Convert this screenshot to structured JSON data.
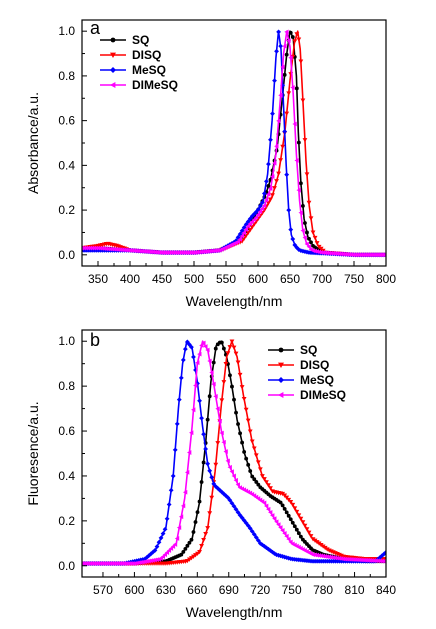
{
  "chart_data": [
    {
      "type": "line",
      "panel_label": "a",
      "xlabel": "Wavelength/nm",
      "ylabel": "Absorbance/a.u.",
      "xlim": [
        325,
        800
      ],
      "ylim": [
        -0.05,
        1.05
      ],
      "xticks": [
        350,
        400,
        450,
        500,
        550,
        600,
        650,
        700,
        750,
        800
      ],
      "xtick_labels": [
        "350",
        "400",
        "450",
        "500",
        "550",
        "600",
        "650",
        "700",
        "750",
        "800"
      ],
      "yticks": [
        0.0,
        0.2,
        0.4,
        0.6,
        0.8,
        1.0
      ],
      "ytick_labels": [
        "0.0",
        "0.2",
        "0.4",
        "0.6",
        "0.8",
        "1.0"
      ],
      "legend_position": "top-left",
      "series": [
        {
          "name": "SQ",
          "color": "#000000",
          "marker": "circle",
          "x": [
            325,
            350,
            375,
            400,
            450,
            500,
            540,
            570,
            585,
            600,
            612,
            620,
            630,
            638,
            645,
            650,
            655,
            660,
            663,
            667,
            672,
            678,
            686,
            700,
            750,
            800
          ],
          "y": [
            0.03,
            0.03,
            0.025,
            0.02,
            0.01,
            0.01,
            0.02,
            0.06,
            0.12,
            0.2,
            0.27,
            0.34,
            0.48,
            0.7,
            0.9,
            1.0,
            0.97,
            0.8,
            0.55,
            0.32,
            0.16,
            0.08,
            0.04,
            0.01,
            0.0,
            0.0
          ]
        },
        {
          "name": "DISQ",
          "color": "#ff0000",
          "marker": "triangle-down",
          "x": [
            325,
            350,
            365,
            380,
            400,
            450,
            500,
            540,
            575,
            595,
            610,
            622,
            632,
            642,
            650,
            657,
            662,
            666,
            670,
            675,
            680,
            686,
            694,
            705,
            750,
            800
          ],
          "y": [
            0.03,
            0.04,
            0.05,
            0.04,
            0.02,
            0.01,
            0.01,
            0.02,
            0.06,
            0.14,
            0.2,
            0.26,
            0.36,
            0.55,
            0.78,
            0.95,
            1.0,
            0.92,
            0.7,
            0.42,
            0.22,
            0.1,
            0.04,
            0.01,
            0.0,
            0.0
          ]
        },
        {
          "name": "MeSQ",
          "color": "#0000ff",
          "marker": "diamond",
          "x": [
            325,
            350,
            375,
            400,
            450,
            500,
            540,
            565,
            580,
            590,
            600,
            608,
            615,
            622,
            628,
            632,
            636,
            640,
            644,
            648,
            652,
            658,
            665,
            680,
            750,
            800
          ],
          "y": [
            0.02,
            0.02,
            0.02,
            0.02,
            0.01,
            0.01,
            0.02,
            0.06,
            0.13,
            0.17,
            0.2,
            0.24,
            0.36,
            0.6,
            0.88,
            1.0,
            0.92,
            0.66,
            0.4,
            0.2,
            0.09,
            0.04,
            0.02,
            0.01,
            0.0,
            0.0
          ]
        },
        {
          "name": "DIMeSQ",
          "color": "#ff00ff",
          "marker": "triangle-left",
          "x": [
            325,
            350,
            375,
            400,
            450,
            500,
            540,
            570,
            585,
            598,
            610,
            620,
            628,
            635,
            640,
            645,
            650,
            655,
            660,
            665,
            670,
            676,
            684,
            700,
            750,
            800
          ],
          "y": [
            0.03,
            0.03,
            0.025,
            0.02,
            0.01,
            0.01,
            0.02,
            0.06,
            0.13,
            0.17,
            0.22,
            0.3,
            0.45,
            0.7,
            0.9,
            1.0,
            0.93,
            0.72,
            0.45,
            0.24,
            0.11,
            0.05,
            0.02,
            0.01,
            0.0,
            0.0
          ]
        }
      ]
    },
    {
      "type": "line",
      "panel_label": "b",
      "xlabel": "Wavelength/nm",
      "ylabel": "Fluoresence/a.u.",
      "xlim": [
        550,
        840
      ],
      "ylim": [
        -0.05,
        1.05
      ],
      "xticks": [
        570,
        600,
        630,
        660,
        690,
        720,
        750,
        780,
        810,
        840
      ],
      "xtick_labels": [
        "570",
        "600",
        "630",
        "660",
        "690",
        "720",
        "750",
        "780",
        "810",
        "840"
      ],
      "yticks": [
        0.0,
        0.2,
        0.4,
        0.6,
        0.8,
        1.0
      ],
      "ytick_labels": [
        "0.0",
        "0.2",
        "0.4",
        "0.6",
        "0.8",
        "1.0"
      ],
      "legend_position": "top-right",
      "series": [
        {
          "name": "SQ",
          "color": "#000000",
          "marker": "circle",
          "x": [
            550,
            600,
            630,
            645,
            655,
            662,
            668,
            673,
            678,
            683,
            688,
            693,
            698,
            705,
            712,
            720,
            730,
            740,
            750,
            760,
            770,
            780,
            800,
            820,
            840
          ],
          "y": [
            0.01,
            0.01,
            0.02,
            0.05,
            0.12,
            0.28,
            0.55,
            0.82,
            0.98,
            1.0,
            0.93,
            0.8,
            0.65,
            0.5,
            0.4,
            0.35,
            0.31,
            0.28,
            0.2,
            0.12,
            0.07,
            0.05,
            0.03,
            0.02,
            0.02
          ]
        },
        {
          "name": "DISQ",
          "color": "#ff0000",
          "marker": "triangle-down",
          "x": [
            550,
            600,
            630,
            650,
            662,
            670,
            677,
            683,
            688,
            693,
            698,
            704,
            712,
            722,
            732,
            742,
            750,
            760,
            770,
            785,
            800,
            820,
            840
          ],
          "y": [
            0.01,
            0.01,
            0.01,
            0.02,
            0.06,
            0.17,
            0.42,
            0.72,
            0.93,
            1.0,
            0.93,
            0.76,
            0.56,
            0.4,
            0.33,
            0.32,
            0.28,
            0.2,
            0.12,
            0.07,
            0.04,
            0.03,
            0.03
          ]
        },
        {
          "name": "MeSQ",
          "color": "#0000ff",
          "marker": "diamond",
          "x": [
            550,
            590,
            610,
            620,
            630,
            637,
            642,
            646,
            650,
            655,
            660,
            665,
            670,
            676,
            683,
            690,
            700,
            710,
            720,
            735,
            750,
            770,
            800,
            830,
            840
          ],
          "y": [
            0.01,
            0.01,
            0.03,
            0.07,
            0.17,
            0.4,
            0.7,
            0.9,
            1.0,
            0.97,
            0.82,
            0.62,
            0.45,
            0.36,
            0.33,
            0.3,
            0.23,
            0.17,
            0.1,
            0.05,
            0.03,
            0.02,
            0.02,
            0.02,
            0.06
          ]
        },
        {
          "name": "DIMeSQ",
          "color": "#ff00ff",
          "marker": "triangle-left",
          "x": [
            550,
            600,
            625,
            640,
            648,
            655,
            660,
            665,
            670,
            676,
            683,
            690,
            700,
            712,
            724,
            735,
            750,
            770,
            800,
            840
          ],
          "y": [
            0.01,
            0.01,
            0.03,
            0.1,
            0.3,
            0.62,
            0.9,
            1.0,
            0.96,
            0.8,
            0.6,
            0.45,
            0.35,
            0.32,
            0.28,
            0.2,
            0.1,
            0.05,
            0.03,
            0.02
          ]
        }
      ]
    }
  ]
}
